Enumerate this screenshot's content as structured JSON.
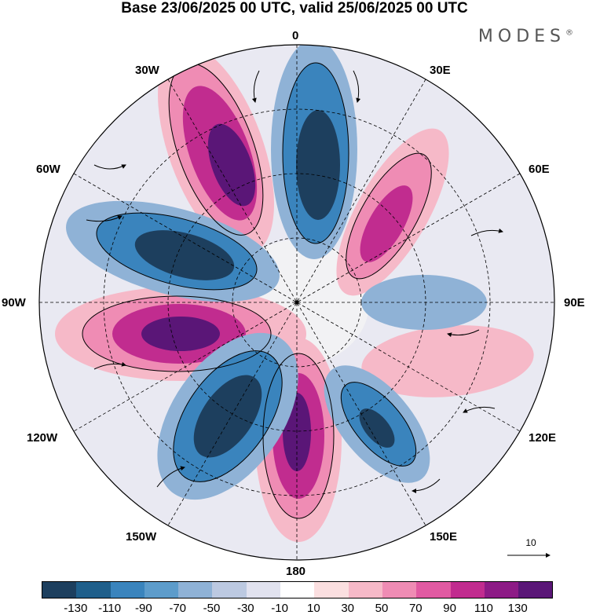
{
  "title": "Base 23/06/2025 00 UTC, valid 25/06/2025 00 UTC",
  "brand": "MODES",
  "brand_mark": "®",
  "longitude_labels": {
    "top": "0",
    "bottom": "180",
    "left": "90W",
    "right": "90E",
    "tl1": "30W",
    "tl2": "60W",
    "tr1": "30E",
    "tr2": "60E",
    "bl1": "120W",
    "bl2": "150W",
    "br1": "120E",
    "br2": "150E"
  },
  "vector_reference": "10",
  "colorbar": {
    "colors": [
      "#1d3f5e",
      "#1f5f8b",
      "#3a84bd",
      "#5d9ccb",
      "#8fb2d6",
      "#bcc9e1",
      "#e1e2ef",
      "#ffffff",
      "#fbdfe0",
      "#f6b9c8",
      "#ef8cb4",
      "#e15aa2",
      "#c12c8f",
      "#8d1b86",
      "#5a1677"
    ],
    "ticks": [
      "-130",
      "-110",
      "-90",
      "-70",
      "-50",
      "-30",
      "-10",
      "10",
      "30",
      "50",
      "70",
      "90",
      "110",
      "130"
    ]
  }
}
